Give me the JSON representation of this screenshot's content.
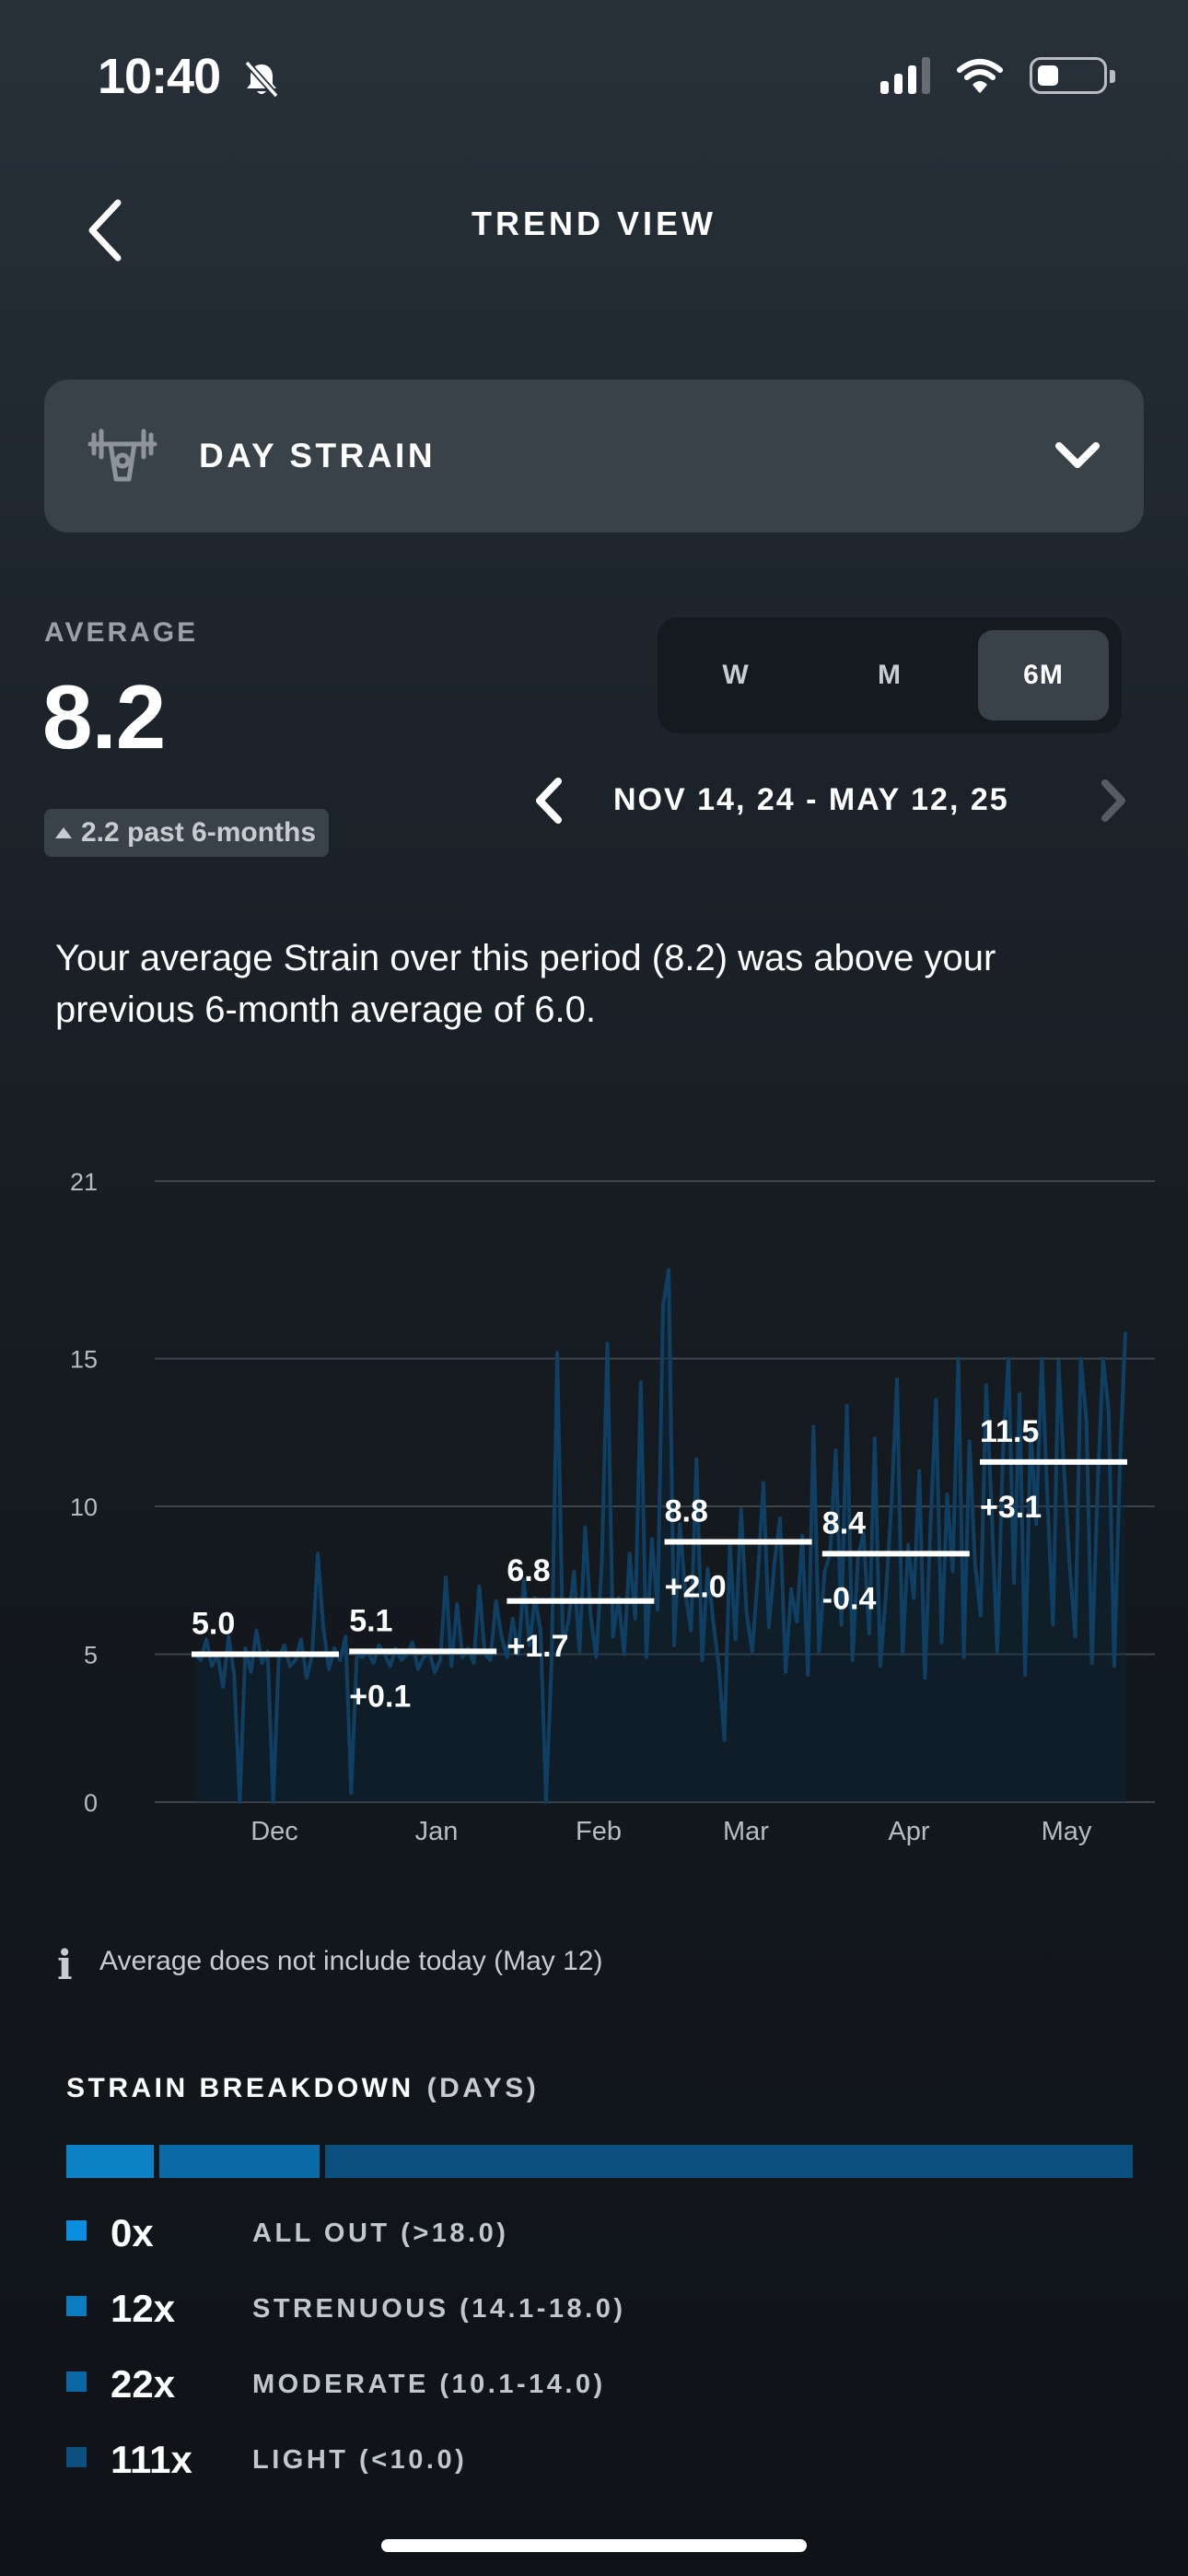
{
  "status_bar": {
    "time": "10:40"
  },
  "header": {
    "title": "TREND VIEW"
  },
  "metric_selector": {
    "label": "DAY STRAIN"
  },
  "average": {
    "label": "AVERAGE",
    "value": "8.2",
    "badge": "2.2 past 6-months"
  },
  "range_tabs": [
    {
      "label": "W",
      "active": false
    },
    {
      "label": "M",
      "active": false
    },
    {
      "label": "6M",
      "active": true
    }
  ],
  "date_range": "NOV 14, 24 - MAY 12, 25",
  "description": "Your average Strain over this period (8.2) was above your previous 6-month average of 6.0.",
  "chart_data": {
    "type": "line",
    "y_ticks": [
      0,
      5,
      10,
      15,
      21
    ],
    "ylim": [
      0,
      21
    ],
    "x_ticks": [
      "Dec",
      "Jan",
      "Feb",
      "Mar",
      "Apr",
      "May"
    ],
    "monthly_averages": [
      {
        "value": "5.0",
        "delta": ""
      },
      {
        "value": "5.1",
        "delta": "+0.1"
      },
      {
        "value": "6.8",
        "delta": "+1.7"
      },
      {
        "value": "8.8",
        "delta": "+2.0"
      },
      {
        "value": "8.4",
        "delta": "-0.4"
      },
      {
        "value": "11.5",
        "delta": "+3.1"
      }
    ],
    "series": [
      {
        "values": [
          5.0,
          4.8,
          5.5,
          4.6,
          5.0,
          3.9,
          5.6,
          4.3,
          0,
          5.2,
          4.4,
          5.8,
          4.7,
          5.1,
          0,
          4.9,
          5.3,
          4.6,
          4.8,
          5.5,
          4.2,
          5.0,
          8.4,
          5.9,
          4.5,
          5.2,
          4.8,
          5.6,
          0.3,
          5.0,
          4.9,
          5.1,
          4.7,
          5.3,
          5.0,
          4.6,
          5.2,
          4.8,
          5.0,
          5.4,
          4.5,
          4.9,
          5.1,
          4.4,
          4.8,
          7.6,
          4.6,
          6.7,
          4.9,
          5.2,
          4.7,
          7.3,
          5.0,
          4.8,
          6.8,
          5.6,
          4.9,
          6.2,
          5.0,
          7.5,
          5.3,
          6.9,
          5.8,
          0,
          4.9,
          15.2,
          5.4,
          6.1,
          7.8,
          5.1,
          9.3,
          6.3,
          4.9,
          8.1,
          15.5,
          5.6,
          6.9,
          5.0,
          8.4,
          6.2,
          14.2,
          4.9,
          8.9,
          6.5,
          16.8,
          18.0,
          5.3,
          9.4,
          7.1,
          5.8,
          11.6,
          4.8,
          7.9,
          6.1,
          4.6,
          2.1,
          8.7,
          5.5,
          9.9,
          6.4,
          5.1,
          7.6,
          10.8,
          5.9,
          8.1,
          9.6,
          4.4,
          7.2,
          6.1,
          9.0,
          4.3,
          12.7,
          5.1,
          7.8,
          8.4,
          11.9,
          6.0,
          13.4,
          4.8,
          8.3,
          9.1,
          5.7,
          12.3,
          4.6,
          7.0,
          10.1,
          14.3,
          5.0,
          8.7,
          6.9,
          11.2,
          4.2,
          9.3,
          13.6,
          5.4,
          10.4,
          7.8,
          15.0,
          4.9,
          12.2,
          8.1,
          6.3,
          14.1,
          9.8,
          5.1,
          11.7,
          15.0,
          7.4,
          13.8,
          4.3,
          12.6,
          9.4,
          15.0,
          10.3,
          6.0,
          14.9,
          11.2,
          8.0,
          5.6,
          15.0,
          12.9,
          4.7,
          10.6,
          15.0,
          13.2,
          4.6,
          11.4,
          15.9
        ]
      }
    ]
  },
  "info_note": "Average does not include today (May 12)",
  "breakdown": {
    "title": "STRAIN BREAKDOWN",
    "unit": "(DAYS)",
    "segments": [
      {
        "days": 12,
        "color": "#0c81c4"
      },
      {
        "days": 22,
        "color": "#0a6aa6"
      },
      {
        "days": 111,
        "color": "#0b4f7e"
      }
    ],
    "rows": [
      {
        "count": "0x",
        "label": "ALL OUT (>18.0)",
        "color": "#0a8fe0"
      },
      {
        "count": "12x",
        "label": "STRENUOUS (14.1-18.0)",
        "color": "#0c7cc0"
      },
      {
        "count": "22x",
        "label": "MODERATE (10.1-14.0)",
        "color": "#0b67a3"
      },
      {
        "count": "111x",
        "label": "LIGHT (<10.0)",
        "color": "#0b4f7e"
      }
    ]
  }
}
